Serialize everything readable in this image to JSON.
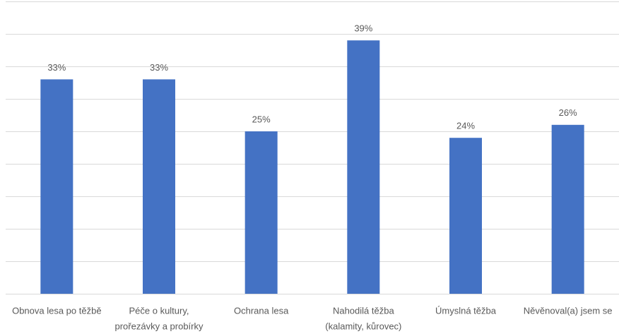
{
  "chart_data": {
    "type": "bar",
    "categories": [
      [
        "Obnova lesa po těžbě"
      ],
      [
        "Péče o kultury,",
        "prořezávky a probírky"
      ],
      [
        "Ochrana lesa"
      ],
      [
        "Nahodilá těžba",
        "(kalamity, kůrovec)"
      ],
      [
        "Úmyslná těžba"
      ],
      [
        "Něvěnoval(a) jsem se"
      ]
    ],
    "values": [
      33,
      33,
      25,
      39,
      24,
      26
    ],
    "value_labels": [
      "33%",
      "33%",
      "25%",
      "39%",
      "24%",
      "26%"
    ],
    "color": "#4472c4",
    "ylim": [
      0,
      45
    ],
    "yticks": [
      0,
      5,
      10,
      15,
      20,
      25,
      30,
      35,
      40,
      45
    ],
    "grid": true
  }
}
